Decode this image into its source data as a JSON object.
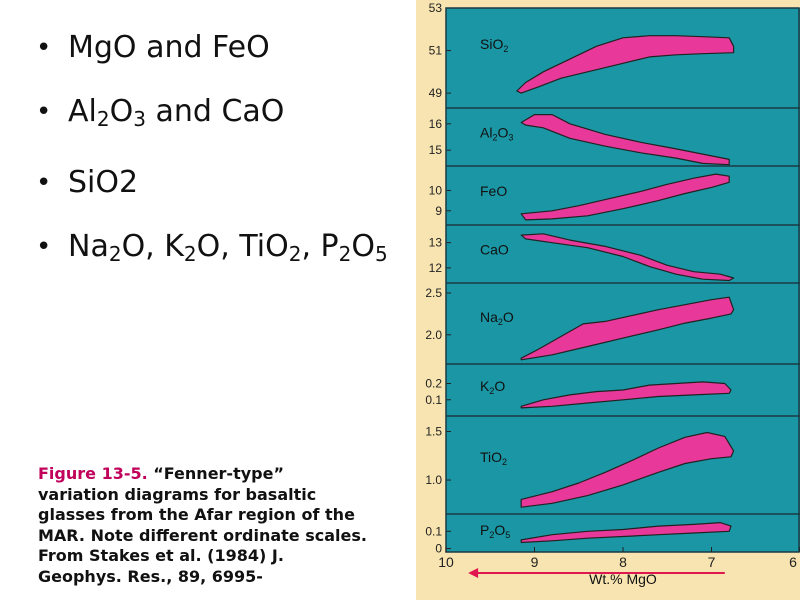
{
  "bullets": [
    {
      "parts": [
        {
          "t": "MgO and FeO"
        }
      ]
    },
    {
      "parts": [
        {
          "t": "Al"
        },
        {
          "t": "2",
          "sub": true
        },
        {
          "t": "O"
        },
        {
          "t": "3",
          "sub": true
        },
        {
          "t": " and CaO"
        }
      ]
    },
    {
      "parts": [
        {
          "t": "SiO2"
        }
      ]
    },
    {
      "parts": [
        {
          "t": "Na"
        },
        {
          "t": "2",
          "sub": true
        },
        {
          "t": "O, K"
        },
        {
          "t": "2",
          "sub": true
        },
        {
          "t": "O, TiO"
        },
        {
          "t": "2",
          "sub": true
        },
        {
          "t": ", P"
        },
        {
          "t": "2",
          "sub": true
        },
        {
          "t": "O"
        },
        {
          "t": "5",
          "sub": true
        }
      ]
    }
  ],
  "caption": {
    "figure": "Figure 13-5.",
    "text": " “Fenner-type” variation diagrams for basaltic glasses from the Afar region of the MAR. Note different ordinate scales. From Stakes et al. (1984) J. Geophys. Res., 89, 6995-"
  },
  "colors": {
    "panel": "#1a96a4",
    "field": "#e8389a",
    "frame": "#f7e4b0",
    "arrow": "#e0164f"
  },
  "chart_data": {
    "type": "area",
    "xlabel": "Wt.% MgO",
    "x_ticks": [
      10,
      9,
      8,
      7,
      6
    ],
    "xlim": [
      10.0,
      6.0
    ],
    "panels": [
      {
        "label": [
          {
            "t": "SiO"
          },
          {
            "t": "2",
            "sub": true
          }
        ],
        "ylim": [
          48.3,
          53.0
        ],
        "yticks": [
          {
            "v": 49,
            "t": "49"
          },
          {
            "v": 51,
            "t": "51"
          },
          {
            "v": 53,
            "t": "53"
          }
        ],
        "upper": [
          [
            9.2,
            49.1
          ],
          [
            9.1,
            49.5
          ],
          [
            8.9,
            50.0
          ],
          [
            8.6,
            50.6
          ],
          [
            8.3,
            51.2
          ],
          [
            8.0,
            51.6
          ],
          [
            7.7,
            51.7
          ],
          [
            7.4,
            51.7
          ],
          [
            7.1,
            51.65
          ],
          [
            6.8,
            51.6
          ],
          [
            6.75,
            51.2
          ]
        ],
        "lower": [
          [
            9.15,
            49.0
          ],
          [
            8.95,
            49.3
          ],
          [
            8.7,
            49.7
          ],
          [
            8.4,
            50.0
          ],
          [
            8.0,
            50.4
          ],
          [
            7.7,
            50.7
          ],
          [
            7.4,
            50.8
          ],
          [
            7.1,
            50.85
          ],
          [
            6.75,
            50.9
          ]
        ]
      },
      {
        "label": [
          {
            "t": "Al"
          },
          {
            "t": "2",
            "sub": true
          },
          {
            "t": "O"
          },
          {
            "t": "3",
            "sub": true
          }
        ],
        "ylim": [
          14.4,
          16.6
        ],
        "yticks": [
          {
            "v": 15,
            "t": "15"
          },
          {
            "v": 16,
            "t": "16"
          }
        ],
        "upper": [
          [
            9.15,
            16.05
          ],
          [
            9.0,
            16.35
          ],
          [
            8.8,
            16.35
          ],
          [
            8.6,
            16.0
          ],
          [
            8.2,
            15.6
          ],
          [
            7.8,
            15.3
          ],
          [
            7.4,
            15.05
          ],
          [
            7.1,
            14.85
          ],
          [
            6.8,
            14.65
          ]
        ],
        "lower": [
          [
            9.1,
            15.95
          ],
          [
            8.9,
            15.85
          ],
          [
            8.6,
            15.45
          ],
          [
            8.2,
            15.15
          ],
          [
            7.8,
            14.9
          ],
          [
            7.4,
            14.7
          ],
          [
            7.1,
            14.5
          ],
          [
            6.8,
            14.45
          ]
        ]
      },
      {
        "label": [
          {
            "t": "FeO"
          }
        ],
        "ylim": [
          8.3,
          11.2
        ],
        "yticks": [
          {
            "v": 9,
            "t": "9"
          },
          {
            "v": 10,
            "t": "10"
          }
        ],
        "upper": [
          [
            9.15,
            8.85
          ],
          [
            8.8,
            9.0
          ],
          [
            8.5,
            9.25
          ],
          [
            8.2,
            9.55
          ],
          [
            7.8,
            9.95
          ],
          [
            7.5,
            10.3
          ],
          [
            7.2,
            10.6
          ],
          [
            6.95,
            10.8
          ],
          [
            6.8,
            10.7
          ]
        ],
        "lower": [
          [
            9.1,
            8.55
          ],
          [
            8.8,
            8.6
          ],
          [
            8.4,
            8.75
          ],
          [
            8.0,
            9.1
          ],
          [
            7.6,
            9.5
          ],
          [
            7.3,
            9.85
          ],
          [
            7.0,
            10.15
          ],
          [
            6.8,
            10.4
          ]
        ]
      },
      {
        "label": [
          {
            "t": "CaO"
          }
        ],
        "ylim": [
          11.4,
          13.7
        ],
        "yticks": [
          {
            "v": 12,
            "t": "12"
          },
          {
            "v": 13,
            "t": "13"
          }
        ],
        "upper": [
          [
            9.15,
            13.3
          ],
          [
            8.9,
            13.35
          ],
          [
            8.6,
            13.1
          ],
          [
            8.2,
            12.85
          ],
          [
            7.8,
            12.5
          ],
          [
            7.5,
            12.1
          ],
          [
            7.2,
            11.85
          ],
          [
            6.9,
            11.75
          ],
          [
            6.75,
            11.6
          ]
        ],
        "lower": [
          [
            9.1,
            13.15
          ],
          [
            8.8,
            13.0
          ],
          [
            8.4,
            12.8
          ],
          [
            8.0,
            12.45
          ],
          [
            7.7,
            12.05
          ],
          [
            7.4,
            11.75
          ],
          [
            7.1,
            11.55
          ],
          [
            6.8,
            11.5
          ]
        ]
      },
      {
        "label": [
          {
            "t": "Na"
          },
          {
            "t": "2",
            "sub": true
          },
          {
            "t": "O"
          }
        ],
        "ylim": [
          1.65,
          2.62
        ],
        "yticks": [
          {
            "v": 2.0,
            "t": "2.0"
          },
          {
            "v": 2.5,
            "t": "2.5"
          }
        ],
        "upper": [
          [
            9.15,
            1.72
          ],
          [
            8.95,
            1.83
          ],
          [
            8.7,
            1.98
          ],
          [
            8.45,
            2.13
          ],
          [
            8.2,
            2.16
          ],
          [
            7.9,
            2.23
          ],
          [
            7.6,
            2.3
          ],
          [
            7.3,
            2.36
          ],
          [
            7.0,
            2.42
          ],
          [
            6.8,
            2.45
          ],
          [
            6.75,
            2.3
          ]
        ],
        "lower": [
          [
            9.15,
            1.7
          ],
          [
            8.8,
            1.76
          ],
          [
            8.4,
            1.86
          ],
          [
            8.0,
            1.96
          ],
          [
            7.6,
            2.06
          ],
          [
            7.3,
            2.14
          ],
          [
            7.0,
            2.2
          ],
          [
            6.78,
            2.25
          ]
        ]
      },
      {
        "label": [
          {
            "t": "K"
          },
          {
            "t": "2",
            "sub": true
          },
          {
            "t": "O"
          }
        ],
        "ylim": [
          0.0,
          0.32
        ],
        "yticks": [
          {
            "v": 0.1,
            "t": "0.1"
          },
          {
            "v": 0.2,
            "t": "0.2"
          }
        ],
        "upper": [
          [
            9.15,
            0.06
          ],
          [
            8.9,
            0.1
          ],
          [
            8.6,
            0.13
          ],
          [
            8.3,
            0.15
          ],
          [
            8.0,
            0.16
          ],
          [
            7.7,
            0.19
          ],
          [
            7.4,
            0.2
          ],
          [
            7.1,
            0.21
          ],
          [
            6.85,
            0.2
          ],
          [
            6.78,
            0.16
          ]
        ],
        "lower": [
          [
            9.15,
            0.05
          ],
          [
            8.8,
            0.06
          ],
          [
            8.4,
            0.08
          ],
          [
            8.0,
            0.1
          ],
          [
            7.6,
            0.12
          ],
          [
            7.2,
            0.13
          ],
          [
            6.8,
            0.14
          ]
        ]
      },
      {
        "label": [
          {
            "t": "TiO"
          },
          {
            "t": "2",
            "sub": true
          }
        ],
        "ylim": [
          0.65,
          1.66
        ],
        "yticks": [
          {
            "v": 1.0,
            "t": "1.0"
          },
          {
            "v": 1.5,
            "t": "1.5"
          }
        ],
        "upper": [
          [
            9.15,
            0.8
          ],
          [
            8.8,
            0.88
          ],
          [
            8.5,
            0.97
          ],
          [
            8.2,
            1.08
          ],
          [
            7.9,
            1.2
          ],
          [
            7.6,
            1.33
          ],
          [
            7.3,
            1.44
          ],
          [
            7.05,
            1.49
          ],
          [
            6.85,
            1.45
          ],
          [
            6.75,
            1.3
          ]
        ],
        "lower": [
          [
            9.15,
            0.72
          ],
          [
            8.8,
            0.76
          ],
          [
            8.4,
            0.84
          ],
          [
            8.0,
            0.95
          ],
          [
            7.6,
            1.08
          ],
          [
            7.3,
            1.17
          ],
          [
            7.0,
            1.22
          ],
          [
            6.78,
            1.24
          ]
        ]
      },
      {
        "label": [
          {
            "t": "P"
          },
          {
            "t": "2",
            "sub": true
          },
          {
            "t": "O"
          },
          {
            "t": "5",
            "sub": true
          }
        ],
        "ylim": [
          -0.02,
          0.2
        ],
        "yticks": [
          {
            "v": 0.0,
            "t": "0"
          },
          {
            "v": 0.1,
            "t": "0.1"
          }
        ],
        "upper": [
          [
            9.15,
            0.05
          ],
          [
            8.8,
            0.08
          ],
          [
            8.4,
            0.1
          ],
          [
            8.0,
            0.11
          ],
          [
            7.6,
            0.13
          ],
          [
            7.2,
            0.14
          ],
          [
            6.9,
            0.15
          ],
          [
            6.78,
            0.13
          ]
        ],
        "lower": [
          [
            9.15,
            0.035
          ],
          [
            8.8,
            0.045
          ],
          [
            8.4,
            0.06
          ],
          [
            8.0,
            0.07
          ],
          [
            7.6,
            0.08
          ],
          [
            7.2,
            0.09
          ],
          [
            6.8,
            0.1
          ]
        ]
      }
    ]
  }
}
